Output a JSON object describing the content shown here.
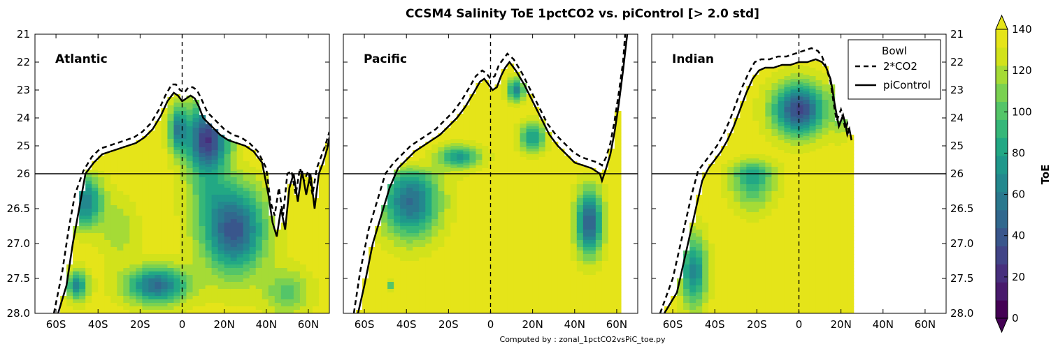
{
  "chart_data": {
    "type": "contourf",
    "title": "CCSM4 Salinity ToE 1pctCO2 vs. piControl [> 2.0 std]",
    "footer": "Computed by : zonal_1pctCO2vsPiC_toe.py",
    "x_tick_labels": [
      "60S",
      "40S",
      "20S",
      "0",
      "20N",
      "40N",
      "60N"
    ],
    "x_tick_values": [
      -60,
      -40,
      -20,
      0,
      20,
      40,
      60
    ],
    "xlim": [
      -70,
      70
    ],
    "y_tick_labels": [
      "21",
      "22",
      "23",
      "24",
      "25",
      "26",
      "26.5",
      "27.0",
      "27.5",
      "28.0"
    ],
    "y_tick_values": [
      21,
      22,
      23,
      24,
      25,
      26,
      26.5,
      27.0,
      27.5,
      28.0
    ],
    "ylim": [
      21,
      28
    ],
    "y_scale": "split: 21-26 linear (upper half), 26-28 linear (lower half)",
    "hline_at": 26,
    "vline_at": 0,
    "panels": [
      {
        "name": "Atlantic",
        "picontrol": [
          [
            -59,
            28.0
          ],
          [
            -55,
            27.6
          ],
          [
            -52,
            27.0
          ],
          [
            -49,
            26.5
          ],
          [
            -46,
            26.0
          ],
          [
            -42,
            25.6
          ],
          [
            -38,
            25.3
          ],
          [
            -34,
            25.2
          ],
          [
            -30,
            25.1
          ],
          [
            -26,
            25.0
          ],
          [
            -22,
            24.9
          ],
          [
            -18,
            24.7
          ],
          [
            -14,
            24.4
          ],
          [
            -10,
            23.9
          ],
          [
            -7,
            23.4
          ],
          [
            -4,
            23.1
          ],
          [
            -2,
            23.2
          ],
          [
            0,
            23.4
          ],
          [
            2,
            23.3
          ],
          [
            4,
            23.2
          ],
          [
            6,
            23.3
          ],
          [
            8,
            23.6
          ],
          [
            10,
            24.0
          ],
          [
            14,
            24.3
          ],
          [
            18,
            24.6
          ],
          [
            22,
            24.8
          ],
          [
            26,
            24.9
          ],
          [
            30,
            25.0
          ],
          [
            34,
            25.2
          ],
          [
            38,
            25.6
          ],
          [
            41,
            26.3
          ],
          [
            43,
            26.7
          ],
          [
            45,
            26.9
          ],
          [
            47,
            26.5
          ],
          [
            49,
            26.8
          ],
          [
            51,
            26.2
          ],
          [
            53,
            26.0
          ],
          [
            55,
            26.4
          ],
          [
            57,
            25.9
          ],
          [
            59,
            26.3
          ],
          [
            61,
            26.0
          ],
          [
            63,
            26.5
          ],
          [
            65,
            26.0
          ],
          [
            67,
            25.6
          ],
          [
            69,
            25.1
          ],
          [
            70,
            24.7
          ]
        ],
        "co2": [
          [
            -61,
            28.0
          ],
          [
            -57,
            27.4
          ],
          [
            -54,
            26.8
          ],
          [
            -51,
            26.3
          ],
          [
            -47,
            25.9
          ],
          [
            -43,
            25.4
          ],
          [
            -39,
            25.1
          ],
          [
            -35,
            25.0
          ],
          [
            -31,
            24.9
          ],
          [
            -27,
            24.8
          ],
          [
            -23,
            24.7
          ],
          [
            -19,
            24.5
          ],
          [
            -15,
            24.2
          ],
          [
            -11,
            23.7
          ],
          [
            -8,
            23.2
          ],
          [
            -5,
            22.8
          ],
          [
            -3,
            22.8
          ],
          [
            -1,
            23.0
          ],
          [
            1,
            23.1
          ],
          [
            3,
            22.9
          ],
          [
            5,
            22.9
          ],
          [
            7,
            23.0
          ],
          [
            9,
            23.3
          ],
          [
            12,
            23.8
          ],
          [
            16,
            24.1
          ],
          [
            20,
            24.4
          ],
          [
            24,
            24.6
          ],
          [
            28,
            24.7
          ],
          [
            32,
            24.9
          ],
          [
            36,
            25.2
          ],
          [
            40,
            25.8
          ],
          [
            42,
            26.4
          ],
          [
            44,
            26.6
          ],
          [
            46,
            26.2
          ],
          [
            48,
            26.6
          ],
          [
            50,
            26.0
          ],
          [
            52,
            25.9
          ],
          [
            54,
            26.3
          ],
          [
            56,
            25.8
          ],
          [
            58,
            26.1
          ],
          [
            60,
            25.9
          ],
          [
            62,
            26.3
          ],
          [
            64,
            25.8
          ],
          [
            66,
            25.4
          ],
          [
            68,
            25.0
          ],
          [
            70,
            24.5
          ]
        ]
      },
      {
        "name": "Pacific",
        "picontrol": [
          [
            -63,
            28.0
          ],
          [
            -60,
            27.6
          ],
          [
            -56,
            27.0
          ],
          [
            -52,
            26.6
          ],
          [
            -48,
            26.2
          ],
          [
            -44,
            25.8
          ],
          [
            -40,
            25.5
          ],
          [
            -36,
            25.2
          ],
          [
            -32,
            25.0
          ],
          [
            -28,
            24.8
          ],
          [
            -24,
            24.6
          ],
          [
            -20,
            24.3
          ],
          [
            -16,
            24.0
          ],
          [
            -12,
            23.6
          ],
          [
            -8,
            23.1
          ],
          [
            -5,
            22.7
          ],
          [
            -3,
            22.6
          ],
          [
            -1,
            22.8
          ],
          [
            1,
            23.0
          ],
          [
            3,
            22.9
          ],
          [
            5,
            22.5
          ],
          [
            7,
            22.2
          ],
          [
            9,
            22.0
          ],
          [
            12,
            22.3
          ],
          [
            16,
            22.8
          ],
          [
            20,
            23.4
          ],
          [
            24,
            24.0
          ],
          [
            28,
            24.6
          ],
          [
            32,
            25.0
          ],
          [
            36,
            25.3
          ],
          [
            40,
            25.6
          ],
          [
            44,
            25.7
          ],
          [
            48,
            25.8
          ],
          [
            50,
            25.9
          ],
          [
            52,
            26.0
          ],
          [
            53,
            26.1
          ],
          [
            55,
            25.8
          ],
          [
            57,
            25.3
          ],
          [
            59,
            24.5
          ],
          [
            61,
            23.5
          ],
          [
            63,
            22.3
          ],
          [
            65,
            21.0
          ]
        ],
        "co2": [
          [
            -65,
            28.0
          ],
          [
            -62,
            27.4
          ],
          [
            -58,
            26.8
          ],
          [
            -54,
            26.4
          ],
          [
            -50,
            26.0
          ],
          [
            -46,
            25.6
          ],
          [
            -42,
            25.3
          ],
          [
            -38,
            25.0
          ],
          [
            -34,
            24.8
          ],
          [
            -30,
            24.6
          ],
          [
            -26,
            24.4
          ],
          [
            -22,
            24.1
          ],
          [
            -18,
            23.8
          ],
          [
            -14,
            23.4
          ],
          [
            -10,
            22.9
          ],
          [
            -7,
            22.5
          ],
          [
            -4,
            22.3
          ],
          [
            -2,
            22.4
          ],
          [
            0,
            22.6
          ],
          [
            2,
            22.5
          ],
          [
            4,
            22.1
          ],
          [
            6,
            21.9
          ],
          [
            8,
            21.7
          ],
          [
            11,
            21.9
          ],
          [
            15,
            22.4
          ],
          [
            19,
            23.0
          ],
          [
            23,
            23.6
          ],
          [
            27,
            24.2
          ],
          [
            31,
            24.6
          ],
          [
            35,
            24.9
          ],
          [
            39,
            25.2
          ],
          [
            43,
            25.4
          ],
          [
            47,
            25.5
          ],
          [
            51,
            25.6
          ],
          [
            53,
            25.7
          ],
          [
            55,
            25.4
          ],
          [
            57,
            24.9
          ],
          [
            59,
            24.1
          ],
          [
            61,
            23.1
          ],
          [
            63,
            22.0
          ],
          [
            64,
            21.0
          ]
        ]
      },
      {
        "name": "Indian",
        "picontrol": [
          [
            -64,
            28.0
          ],
          [
            -58,
            27.7
          ],
          [
            -55,
            27.3
          ],
          [
            -52,
            26.9
          ],
          [
            -49,
            26.5
          ],
          [
            -46,
            26.1
          ],
          [
            -43,
            25.8
          ],
          [
            -40,
            25.5
          ],
          [
            -37,
            25.2
          ],
          [
            -34,
            24.8
          ],
          [
            -31,
            24.3
          ],
          [
            -28,
            23.7
          ],
          [
            -25,
            23.1
          ],
          [
            -22,
            22.6
          ],
          [
            -19,
            22.3
          ],
          [
            -16,
            22.2
          ],
          [
            -12,
            22.2
          ],
          [
            -8,
            22.1
          ],
          [
            -4,
            22.1
          ],
          [
            0,
            22.0
          ],
          [
            4,
            22.0
          ],
          [
            8,
            21.9
          ],
          [
            11,
            22.0
          ],
          [
            13,
            22.2
          ],
          [
            15,
            22.6
          ],
          [
            16,
            23.0
          ],
          [
            17,
            23.5
          ],
          [
            18,
            23.9
          ],
          [
            19,
            24.3
          ],
          [
            20,
            24.1
          ],
          [
            21,
            23.9
          ],
          [
            22,
            24.2
          ],
          [
            23,
            24.6
          ],
          [
            24,
            24.4
          ],
          [
            25,
            24.8
          ]
        ],
        "co2": [
          [
            -66,
            28.0
          ],
          [
            -60,
            27.5
          ],
          [
            -57,
            27.1
          ],
          [
            -54,
            26.7
          ],
          [
            -51,
            26.3
          ],
          [
            -48,
            25.9
          ],
          [
            -45,
            25.6
          ],
          [
            -42,
            25.3
          ],
          [
            -39,
            25.0
          ],
          [
            -36,
            24.6
          ],
          [
            -33,
            24.1
          ],
          [
            -30,
            23.5
          ],
          [
            -27,
            22.9
          ],
          [
            -24,
            22.4
          ],
          [
            -21,
            22.0
          ],
          [
            -18,
            21.9
          ],
          [
            -14,
            21.9
          ],
          [
            -10,
            21.8
          ],
          [
            -6,
            21.8
          ],
          [
            -2,
            21.7
          ],
          [
            2,
            21.6
          ],
          [
            6,
            21.5
          ],
          [
            9,
            21.6
          ],
          [
            11,
            21.8
          ],
          [
            13,
            22.2
          ],
          [
            15,
            22.7
          ],
          [
            16,
            23.2
          ],
          [
            17,
            23.7
          ],
          [
            18,
            24.1
          ],
          [
            19,
            23.9
          ],
          [
            20,
            23.7
          ],
          [
            21,
            24.0
          ],
          [
            22,
            24.4
          ],
          [
            23,
            24.2
          ],
          [
            24,
            24.6
          ]
        ]
      }
    ],
    "legend": {
      "title": "Bowl",
      "entries": [
        {
          "label": "2*CO2",
          "style": "dashed"
        },
        {
          "label": "piControl",
          "style": "solid"
        }
      ],
      "placement": "top-right of Indian panel"
    },
    "colorbar": {
      "label": "ToE",
      "ticks": [
        0,
        20,
        40,
        60,
        80,
        100,
        120,
        140
      ],
      "colors": [
        "#440154",
        "#481a6c",
        "#472f7d",
        "#414487",
        "#39568c",
        "#31688e",
        "#2a788e",
        "#23888e",
        "#1f988b",
        "#22a884",
        "#35b779",
        "#54c568",
        "#7ad151",
        "#a5db36",
        "#d2e21b",
        "#e5e419"
      ]
    }
  }
}
